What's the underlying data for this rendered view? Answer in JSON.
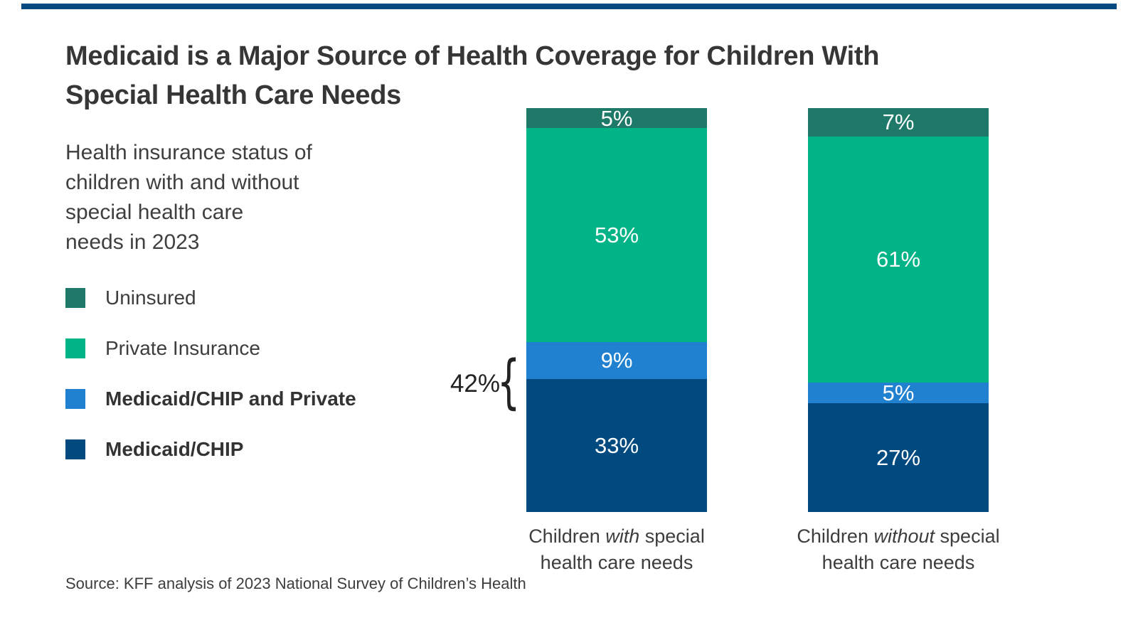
{
  "decor": {
    "top_rule_color": "#004a80"
  },
  "title": {
    "line1": "Medicaid is a Major Source of Health Coverage for Children With",
    "line2": "Special Health Care Needs"
  },
  "subtitle": {
    "line1": "Health insurance status of",
    "line2": "children with and without",
    "line3": "special health care",
    "line4": "needs in 2023"
  },
  "legend": {
    "items": [
      {
        "label": "Uninsured",
        "color": "#1e7968",
        "bold": false
      },
      {
        "label": "Private Insurance",
        "color": "#00b487",
        "bold": false
      },
      {
        "label": "Medicaid/CHIP and Private",
        "color": "#2081d1",
        "bold": true
      },
      {
        "label": "Medicaid/CHIP",
        "color": "#004a80",
        "bold": true
      }
    ]
  },
  "annotation": {
    "value": "42%",
    "brace": "{"
  },
  "source": "Source: KFF analysis of 2023 National Survey of Children’s Health",
  "chart_data": {
    "type": "bar",
    "stacked": true,
    "orientation": "vertical",
    "unit": "percent",
    "title": "Medicaid is a Major Source of Health Coverage for Children With Special Health Care Needs",
    "subtitle": "Health insurance status of children with and without special health care needs in 2023",
    "categories": [
      {
        "prefix": "Children ",
        "emphasis": "with",
        "mid": " special",
        "line2": "health care needs"
      },
      {
        "prefix": "Children ",
        "emphasis": "without",
        "mid": " special",
        "line2": "health care needs"
      }
    ],
    "series": [
      {
        "name": "Uninsured",
        "color": "#1e7968",
        "values": [
          5,
          7
        ],
        "labels": [
          "5%",
          "7%"
        ]
      },
      {
        "name": "Private Insurance",
        "color": "#00b487",
        "values": [
          53,
          61
        ],
        "labels": [
          "53%",
          "61%"
        ]
      },
      {
        "name": "Medicaid/CHIP and Private",
        "color": "#2081d1",
        "values": [
          9,
          5
        ],
        "labels": [
          "9%",
          "5%"
        ]
      },
      {
        "name": "Medicaid/CHIP",
        "color": "#004a80",
        "values": [
          33,
          27
        ],
        "labels": [
          "33%",
          "27%"
        ]
      }
    ],
    "ylim": [
      0,
      100
    ],
    "grid": false,
    "axes_shown": false,
    "legend_position": "left",
    "annotations": [
      {
        "text": "42%",
        "meaning": "Combined Medicaid/CHIP and Medicaid/CHIP-and-Private share for children with special health care needs",
        "bar_index": 0,
        "series_grouped": [
          "Medicaid/CHIP and Private",
          "Medicaid/CHIP"
        ]
      }
    ],
    "source": "Source: KFF analysis of 2023 National Survey of Children’s Health"
  }
}
